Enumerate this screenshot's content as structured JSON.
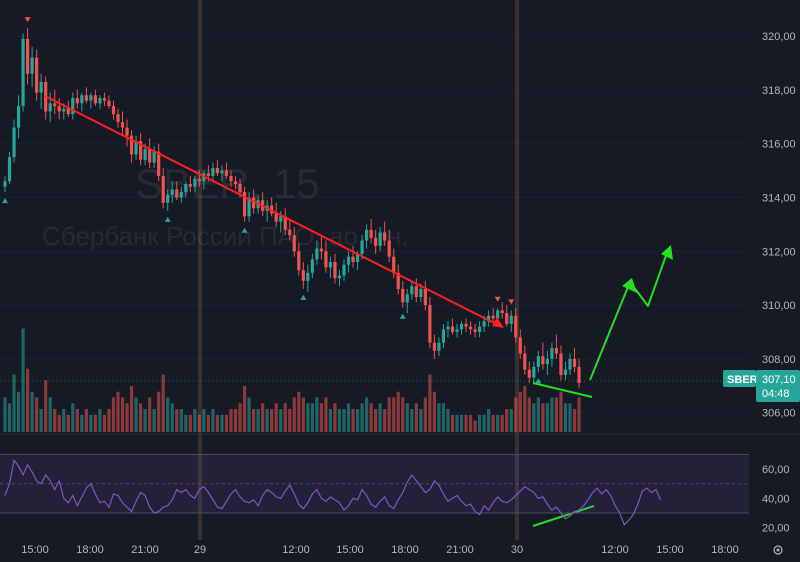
{
  "symbol_watermark": "SBER, 15",
  "company_watermark": "Сбербанк России ПАО, ао, ин.",
  "colors": {
    "background": "#161a25",
    "up": "#26a69a",
    "down": "#ef5350",
    "rsi_line": "#7e57c2",
    "trend_down": "#ff1f1f",
    "forecast": "#22e022",
    "badge": "#26a69a"
  },
  "price_badge": {
    "symbol": "SBER",
    "price": "307,10",
    "countdown": "04:48"
  },
  "chart_data": {
    "type": "candlestick",
    "interval": "15",
    "y_ticks": [
      "320,00",
      "318,00",
      "316,00",
      "314,00",
      "312,00",
      "310,00",
      "308,00",
      "306,00"
    ],
    "ylim": [
      305.8,
      320.6
    ],
    "x_ticks": [
      "15:00",
      "18:00",
      "21:00",
      "29",
      "12:00",
      "15:00",
      "18:00",
      "21:00",
      "30",
      "12:00",
      "15:00",
      "18:00"
    ],
    "rsi": {
      "levels": [
        "60,00",
        "40,00",
        "20,00"
      ],
      "band": [
        30,
        70
      ],
      "mid": 50,
      "ylim": [
        15,
        73
      ],
      "values": [
        42,
        50,
        66,
        62,
        56,
        63,
        58,
        52,
        50,
        56,
        52,
        46,
        52,
        40,
        37,
        42,
        35,
        41,
        47,
        50,
        43,
        37,
        38,
        34,
        43,
        42,
        37,
        34,
        31,
        38,
        44,
        42,
        34,
        30,
        31,
        34,
        35,
        39,
        46,
        44,
        46,
        42,
        40,
        46,
        48,
        44,
        39,
        34,
        33,
        38,
        43,
        46,
        41,
        38,
        37,
        39,
        35,
        42,
        46,
        44,
        41,
        40,
        45,
        49,
        43,
        36,
        33,
        37,
        43,
        46,
        40,
        38,
        41,
        39,
        37,
        32,
        35,
        40,
        39,
        46,
        42,
        36,
        34,
        38,
        41,
        35,
        33,
        39,
        44,
        51,
        56,
        52,
        48,
        44,
        46,
        52,
        49,
        43,
        38,
        40,
        42,
        38,
        35,
        36,
        31,
        29,
        35,
        32,
        37,
        41,
        38,
        37,
        39,
        42,
        45,
        48,
        46,
        44,
        40,
        41,
        36,
        32,
        34,
        30,
        26,
        28,
        31,
        32,
        35,
        39,
        44,
        47,
        43,
        46,
        42,
        35,
        30,
        22,
        25,
        29,
        36,
        45,
        47,
        44,
        46,
        39
      ]
    },
    "candles": [
      [
        314.4,
        314.8,
        314.2,
        314.6
      ],
      [
        314.6,
        315.7,
        314.5,
        315.5
      ],
      [
        315.5,
        316.9,
        315.3,
        316.6
      ],
      [
        316.6,
        317.8,
        316.2,
        317.4
      ],
      [
        317.4,
        320.1,
        317.2,
        319.9
      ],
      [
        319.9,
        320.3,
        318.2,
        318.6
      ],
      [
        318.6,
        319.6,
        318.1,
        319.2
      ],
      [
        319.2,
        319.5,
        317.6,
        317.9
      ],
      [
        317.9,
        318.6,
        317.3,
        318.3
      ],
      [
        318.3,
        318.5,
        316.9,
        317.2
      ],
      [
        317.2,
        317.9,
        316.8,
        317.5
      ],
      [
        317.5,
        318.0,
        317.1,
        317.4
      ],
      [
        317.4,
        317.7,
        316.9,
        317.2
      ],
      [
        317.2,
        317.5,
        316.9,
        317.3
      ],
      [
        317.3,
        317.6,
        317.0,
        317.1
      ],
      [
        317.1,
        317.9,
        316.9,
        317.7
      ],
      [
        317.7,
        318.0,
        317.3,
        317.5
      ],
      [
        317.5,
        317.9,
        317.2,
        317.8
      ],
      [
        317.8,
        318.1,
        317.5,
        317.6
      ],
      [
        317.6,
        317.9,
        317.3,
        317.8
      ],
      [
        317.8,
        318.0,
        317.4,
        317.5
      ],
      [
        317.5,
        317.8,
        317.3,
        317.7
      ],
      [
        317.7,
        317.9,
        317.4,
        317.6
      ],
      [
        317.6,
        317.8,
        317.3,
        317.4
      ],
      [
        317.4,
        317.6,
        316.9,
        317.1
      ],
      [
        317.1,
        317.3,
        316.6,
        316.8
      ],
      [
        316.8,
        317.2,
        316.3,
        316.6
      ],
      [
        316.6,
        316.9,
        315.9,
        316.3
      ],
      [
        316.3,
        316.5,
        315.3,
        315.6
      ],
      [
        315.6,
        316.3,
        315.4,
        316.1
      ],
      [
        316.1,
        316.4,
        315.2,
        315.4
      ],
      [
        315.4,
        316.0,
        315.2,
        315.8
      ],
      [
        315.8,
        316.2,
        315.1,
        315.3
      ],
      [
        315.3,
        315.9,
        315.1,
        315.7
      ],
      [
        315.7,
        316.0,
        314.6,
        314.8
      ],
      [
        314.8,
        315.1,
        313.6,
        313.8
      ],
      [
        313.8,
        314.3,
        313.5,
        314.1
      ],
      [
        314.1,
        314.6,
        313.8,
        314.3
      ],
      [
        314.3,
        314.6,
        313.9,
        314.0
      ],
      [
        314.0,
        314.4,
        313.8,
        314.2
      ],
      [
        314.2,
        314.6,
        314.0,
        314.5
      ],
      [
        314.5,
        314.8,
        314.2,
        314.4
      ],
      [
        314.4,
        314.8,
        314.2,
        314.7
      ],
      [
        314.7,
        315.0,
        314.4,
        314.6
      ],
      [
        314.6,
        315.0,
        314.3,
        314.9
      ],
      [
        314.9,
        315.2,
        314.6,
        314.8
      ],
      [
        314.8,
        315.3,
        314.6,
        315.1
      ],
      [
        315.1,
        315.4,
        314.8,
        314.9
      ],
      [
        314.9,
        315.2,
        314.6,
        315.0
      ],
      [
        315.0,
        315.3,
        314.7,
        314.8
      ],
      [
        314.8,
        315.0,
        314.4,
        314.6
      ],
      [
        314.6,
        314.8,
        314.3,
        314.5
      ],
      [
        314.5,
        314.7,
        314.0,
        314.2
      ],
      [
        314.2,
        314.4,
        313.1,
        313.3
      ],
      [
        313.3,
        314.2,
        313.1,
        314.0
      ],
      [
        314.0,
        314.3,
        313.4,
        313.6
      ],
      [
        313.6,
        314.1,
        313.4,
        313.9
      ],
      [
        313.9,
        314.2,
        313.3,
        313.5
      ],
      [
        313.5,
        313.9,
        313.1,
        313.7
      ],
      [
        313.7,
        314.0,
        313.3,
        313.4
      ],
      [
        313.4,
        313.8,
        312.9,
        313.1
      ],
      [
        313.1,
        313.5,
        312.7,
        313.3
      ],
      [
        313.3,
        313.6,
        312.6,
        312.8
      ],
      [
        312.8,
        313.2,
        312.4,
        312.6
      ],
      [
        312.6,
        312.9,
        311.8,
        312.0
      ],
      [
        312.0,
        312.3,
        311.1,
        311.3
      ],
      [
        311.3,
        311.6,
        310.6,
        310.9
      ],
      [
        310.9,
        311.5,
        310.5,
        311.2
      ],
      [
        311.2,
        311.9,
        311.0,
        311.7
      ],
      [
        311.7,
        312.4,
        311.5,
        312.1
      ],
      [
        312.1,
        312.6,
        311.7,
        312.0
      ],
      [
        312.0,
        312.4,
        311.2,
        311.4
      ],
      [
        311.4,
        311.8,
        311.0,
        311.6
      ],
      [
        311.6,
        311.9,
        310.8,
        311.0
      ],
      [
        311.0,
        311.3,
        310.7,
        311.1
      ],
      [
        311.1,
        311.7,
        310.9,
        311.5
      ],
      [
        311.5,
        312.0,
        311.2,
        311.8
      ],
      [
        311.8,
        312.2,
        311.4,
        311.6
      ],
      [
        311.6,
        312.0,
        311.3,
        311.9
      ],
      [
        311.9,
        312.6,
        311.7,
        312.4
      ],
      [
        312.4,
        313.0,
        312.1,
        312.8
      ],
      [
        312.8,
        313.2,
        312.3,
        312.5
      ],
      [
        312.5,
        312.8,
        311.9,
        312.2
      ],
      [
        312.2,
        312.9,
        312.0,
        312.7
      ],
      [
        312.7,
        313.1,
        312.2,
        312.4
      ],
      [
        312.4,
        312.8,
        311.6,
        311.8
      ],
      [
        311.8,
        312.1,
        311.0,
        311.2
      ],
      [
        311.2,
        311.5,
        310.4,
        310.6
      ],
      [
        310.6,
        310.9,
        309.9,
        310.1
      ],
      [
        310.1,
        310.6,
        309.7,
        310.4
      ],
      [
        310.4,
        310.9,
        310.2,
        310.7
      ],
      [
        310.7,
        311.0,
        310.1,
        310.3
      ],
      [
        310.3,
        310.8,
        310.1,
        310.6
      ],
      [
        310.6,
        310.9,
        309.8,
        310.0
      ],
      [
        310.0,
        310.3,
        308.4,
        308.6
      ],
      [
        308.6,
        308.9,
        308.0,
        308.3
      ],
      [
        308.3,
        308.8,
        308.1,
        308.6
      ],
      [
        308.6,
        309.3,
        308.4,
        309.1
      ],
      [
        309.1,
        309.4,
        308.8,
        309.2
      ],
      [
        309.2,
        309.5,
        308.9,
        309.0
      ],
      [
        309.0,
        309.3,
        308.8,
        309.1
      ],
      [
        309.1,
        309.4,
        308.9,
        309.3
      ],
      [
        309.3,
        309.5,
        309.0,
        309.2
      ],
      [
        309.2,
        309.4,
        308.9,
        309.1
      ],
      [
        309.1,
        309.3,
        308.8,
        309.0
      ],
      [
        309.0,
        309.4,
        308.8,
        309.2
      ],
      [
        309.2,
        309.6,
        309.0,
        309.4
      ],
      [
        309.4,
        309.8,
        309.2,
        309.6
      ],
      [
        309.6,
        309.9,
        309.3,
        309.5
      ],
      [
        309.5,
        309.9,
        309.3,
        309.8
      ],
      [
        309.8,
        310.1,
        309.5,
        309.7
      ],
      [
        309.7,
        310.0,
        309.2,
        309.3
      ],
      [
        309.3,
        309.8,
        309.0,
        309.6
      ],
      [
        309.6,
        309.9,
        308.6,
        308.8
      ],
      [
        308.8,
        309.1,
        308.0,
        308.2
      ],
      [
        308.2,
        308.5,
        307.4,
        307.6
      ],
      [
        307.6,
        307.9,
        307.1,
        307.3
      ],
      [
        307.3,
        307.9,
        307.1,
        307.7
      ],
      [
        307.7,
        308.3,
        307.5,
        308.1
      ],
      [
        308.1,
        308.6,
        307.6,
        307.8
      ],
      [
        307.8,
        308.3,
        307.4,
        308.0
      ],
      [
        308.0,
        308.6,
        307.7,
        308.4
      ],
      [
        308.4,
        308.9,
        308.0,
        308.2
      ],
      [
        308.2,
        308.5,
        307.2,
        307.4
      ],
      [
        307.4,
        307.9,
        307.2,
        307.6
      ],
      [
        307.6,
        308.2,
        307.4,
        308.0
      ],
      [
        308.0,
        308.4,
        307.5,
        307.7
      ],
      [
        307.7,
        308.0,
        306.9,
        307.1
      ]
    ],
    "volume": [
      0.3,
      0.25,
      0.5,
      0.35,
      0.9,
      0.55,
      0.35,
      0.3,
      0.2,
      0.45,
      0.3,
      0.2,
      0.15,
      0.2,
      0.15,
      0.25,
      0.2,
      0.15,
      0.2,
      0.15,
      0.15,
      0.2,
      0.15,
      0.2,
      0.3,
      0.35,
      0.3,
      0.25,
      0.4,
      0.3,
      0.25,
      0.2,
      0.3,
      0.2,
      0.35,
      0.5,
      0.3,
      0.25,
      0.2,
      0.2,
      0.15,
      0.15,
      0.2,
      0.15,
      0.2,
      0.15,
      0.2,
      0.15,
      0.15,
      0.15,
      0.2,
      0.2,
      0.25,
      0.4,
      0.3,
      0.2,
      0.2,
      0.25,
      0.2,
      0.2,
      0.25,
      0.2,
      0.25,
      0.2,
      0.3,
      0.35,
      0.3,
      0.25,
      0.25,
      0.3,
      0.25,
      0.3,
      0.2,
      0.25,
      0.2,
      0.2,
      0.25,
      0.2,
      0.2,
      0.25,
      0.3,
      0.25,
      0.2,
      0.25,
      0.2,
      0.3,
      0.3,
      0.35,
      0.3,
      0.25,
      0.2,
      0.25,
      0.2,
      0.3,
      0.5,
      0.35,
      0.25,
      0.25,
      0.2,
      0.15,
      0.15,
      0.15,
      0.15,
      0.15,
      0.1,
      0.15,
      0.15,
      0.2,
      0.15,
      0.15,
      0.15,
      0.2,
      0.2,
      0.3,
      0.35,
      0.4,
      0.3,
      0.25,
      0.3,
      0.25,
      0.25,
      0.3,
      0.3,
      0.35,
      0.25,
      0.25,
      0.2,
      0.3
    ],
    "signals": [
      {
        "i": 0,
        "type": "buy"
      },
      {
        "i": 5,
        "type": "sell"
      },
      {
        "i": 36,
        "type": "buy"
      },
      {
        "i": 53,
        "type": "buy"
      },
      {
        "i": 66,
        "type": "buy"
      },
      {
        "i": 88,
        "type": "buy"
      },
      {
        "i": 109,
        "type": "sell"
      },
      {
        "i": 112,
        "type": "sell"
      },
      {
        "i": 118,
        "type": "buy"
      }
    ]
  }
}
